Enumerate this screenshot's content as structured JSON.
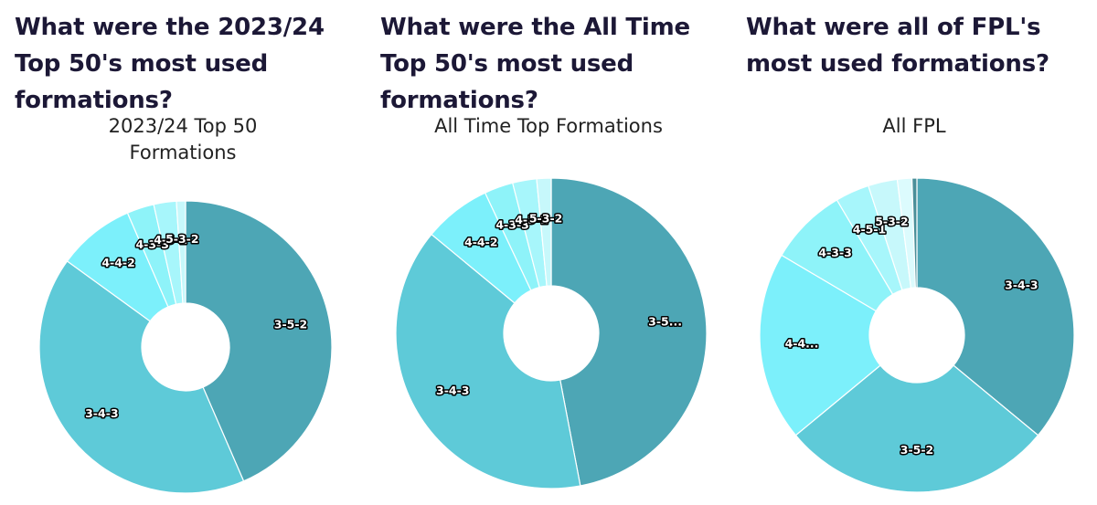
{
  "panels": [
    {
      "heading": "What were the 2023/24 Top 50's most used formations?"
    },
    {
      "heading": "What were the All Time Top 50's most used formations?"
    },
    {
      "heading": "What were all of FPL's most used formations?"
    }
  ],
  "chart_data": [
    {
      "type": "pie",
      "donut": true,
      "title": "2023/24 Top 50\nFormations",
      "slices": [
        {
          "label": "3-5-2",
          "value": 43.5,
          "color": "#4da6b5"
        },
        {
          "label": "3-4-3",
          "value": 41.5,
          "color": "#5ecad8"
        },
        {
          "label": "4-4-2",
          "value": 8.5,
          "color": "#7cf0fb"
        },
        {
          "label": "4-3-3",
          "value": 3.0,
          "color": "#8ef3f9"
        },
        {
          "label": "4-5-1",
          "value": 2.5,
          "color": "#a7f6fb"
        },
        {
          "label": "5-3-2",
          "value": 1.0,
          "color": "#c7f8fb"
        }
      ]
    },
    {
      "type": "pie",
      "donut": true,
      "title": "All Time Top Formations",
      "slices": [
        {
          "label": "3-5...",
          "value": 47.0,
          "color": "#4da6b5"
        },
        {
          "label": "3-4-3",
          "value": 39.0,
          "color": "#5ecad8"
        },
        {
          "label": "4-4-2",
          "value": 7.0,
          "color": "#7cf0fb"
        },
        {
          "label": "4-3-3",
          "value": 3.0,
          "color": "#8ef3f9"
        },
        {
          "label": "4-5-1",
          "value": 2.5,
          "color": "#a7f6fb"
        },
        {
          "label": "5-3-2",
          "value": 1.5,
          "color": "#c7f8fb"
        }
      ]
    },
    {
      "type": "pie",
      "donut": true,
      "title": "All FPL",
      "slices": [
        {
          "label": "3-4-3",
          "value": 36.0,
          "color": "#4da6b5"
        },
        {
          "label": "3-5-2",
          "value": 28.0,
          "color": "#5ecad8"
        },
        {
          "label": "4-4...",
          "value": 19.5,
          "color": "#7cf0fb"
        },
        {
          "label": "4-3-3",
          "value": 8.0,
          "color": "#8ef3f9"
        },
        {
          "label": "4-5-1",
          "value": 3.5,
          "color": "#a7f6fb"
        },
        {
          "label": "5-3-2",
          "value": 3.0,
          "color": "#c7f8fb"
        },
        {
          "label": "",
          "value": 1.5,
          "color": "#dcfbfd"
        },
        {
          "label": "",
          "value": 0.5,
          "color": "#4a8f99"
        }
      ]
    }
  ]
}
